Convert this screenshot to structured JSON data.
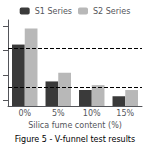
{
  "chart_data": {
    "type": "bar",
    "title": "Figure 5 - V-funnel test results",
    "xlabel": "Silica fume content (%)",
    "categories": [
      "0%",
      "5%",
      "10%",
      "15%"
    ],
    "series": [
      {
        "name": "S1 Series",
        "color": "#3a3a3a",
        "values": [
          8.5,
          5.5,
          4.8,
          4.3
        ]
      },
      {
        "name": "S2 Series",
        "color": "#b8b8b8",
        "values": [
          9.8,
          6.2,
          5.2,
          4.8
        ]
      }
    ],
    "hlines": [
      8.2,
      5.0
    ],
    "ylim": [
      3.5,
      10.5
    ],
    "yticks": [
      4,
      6,
      8,
      10
    ],
    "tick_labels": "x",
    "grid": false,
    "legend": "top"
  }
}
